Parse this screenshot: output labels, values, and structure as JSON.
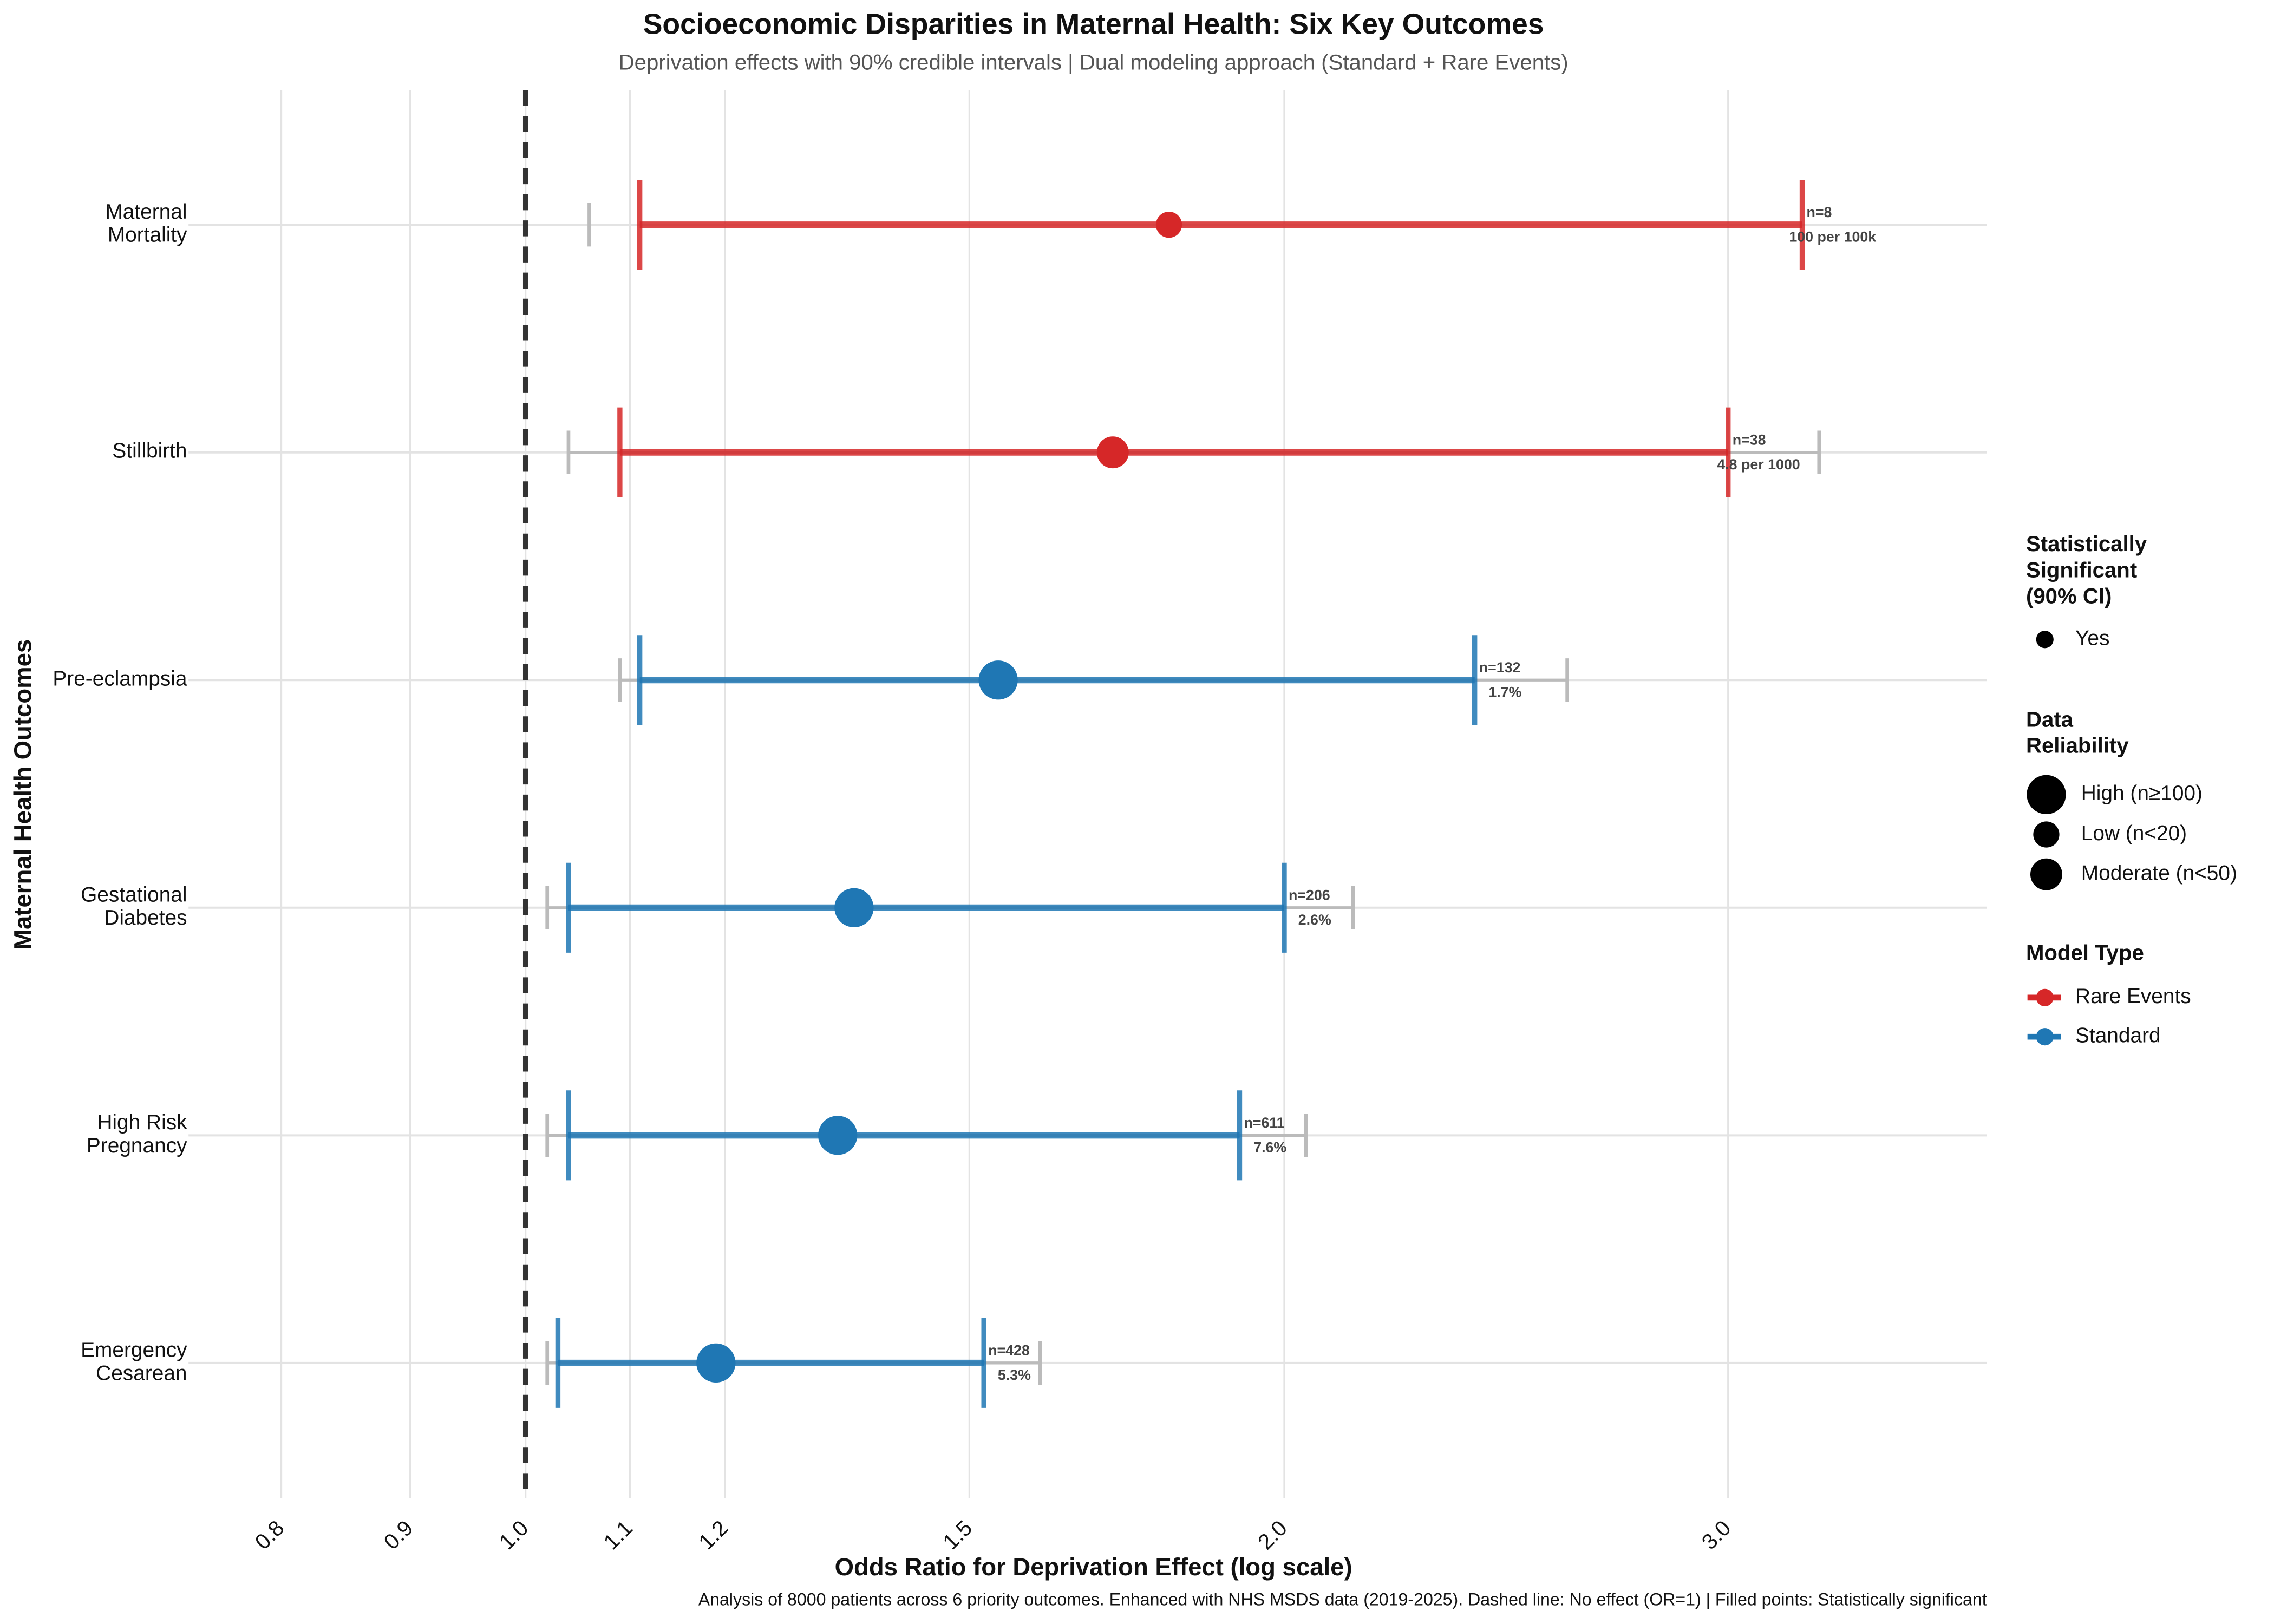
{
  "chart_data": {
    "type": "forest",
    "title": "Socioeconomic Disparities in Maternal Health: Six Key Outcomes",
    "subtitle": "Deprivation effects with 90% credible intervals | Dual modeling approach (Standard + Rare Events)",
    "x_label": "Odds Ratio for Deprivation Effect (log scale)",
    "y_label": "Maternal Health Outcomes",
    "caption": "Analysis of 8000 patients across 6 priority outcomes. Enhanced with NHS MSDS data (2019-2025). Dashed line: No effect (OR=1) | Filled points: Statistically significant",
    "log_x": true,
    "grid": true,
    "reference_line": 1,
    "xlim": [
      0.735,
      3.8
    ],
    "xticks": [
      0.8,
      0.9,
      {
        "value": 1,
        "label": "1.0"
      },
      1.1,
      1.2,
      1.5,
      {
        "value": 2,
        "label": "2.0"
      },
      {
        "value": 3,
        "label": "3.0"
      }
    ],
    "categories": [
      "Maternal\nMortality",
      "Stillbirth",
      "Pre-eclampsia",
      "Gestational\nDiabetes",
      "High Risk\nPregnancy",
      "Emergency\nCesarean"
    ],
    "estimates": [
      1.8,
      1.71,
      1.54,
      1.35,
      1.33,
      1.19
    ],
    "lower": [
      1.11,
      1.09,
      1.11,
      1.04,
      1.04,
      1.03
    ],
    "upper": [
      3.21,
      3.0,
      2.38,
      2.0,
      1.92,
      1.52
    ],
    "alt_lower": [
      1.06,
      1.04,
      1.09,
      1.02,
      1.02,
      1.02
    ],
    "alt_upper": [
      null,
      3.26,
      2.59,
      2.13,
      2.04,
      1.6
    ],
    "model": [
      "Rare Events",
      "Rare Events",
      "Standard",
      "Standard",
      "Standard",
      "Standard"
    ],
    "reliability": [
      "Low (n<20)",
      "Moderate (n<50)",
      "High (n≥100)",
      "High (n≥100)",
      "High (n≥100)",
      "High (n≥100)"
    ],
    "n_labels": [
      "n=8",
      "n=38",
      "n=132",
      "n=206",
      "n=611",
      "n=428"
    ],
    "rate_labels": [
      "100 per 100k",
      "4.8 per 1000",
      "1.7%",
      "2.6%",
      "7.6%",
      "5.3%"
    ],
    "significance_legend": {
      "title": "Statistically\nSignificant\n(90% CI)",
      "entries": [
        "Yes"
      ]
    },
    "reliability_legend": {
      "title": "Data\nReliability",
      "entries": [
        "High (n≥100)",
        "Low (n<20)",
        "Moderate (n<50)"
      ]
    },
    "model_legend": {
      "title": "Model Type",
      "entries": [
        {
          "name": "Rare Events",
          "color": "#d62728"
        },
        {
          "name": "Standard",
          "color": "#1f77b4"
        }
      ]
    }
  }
}
